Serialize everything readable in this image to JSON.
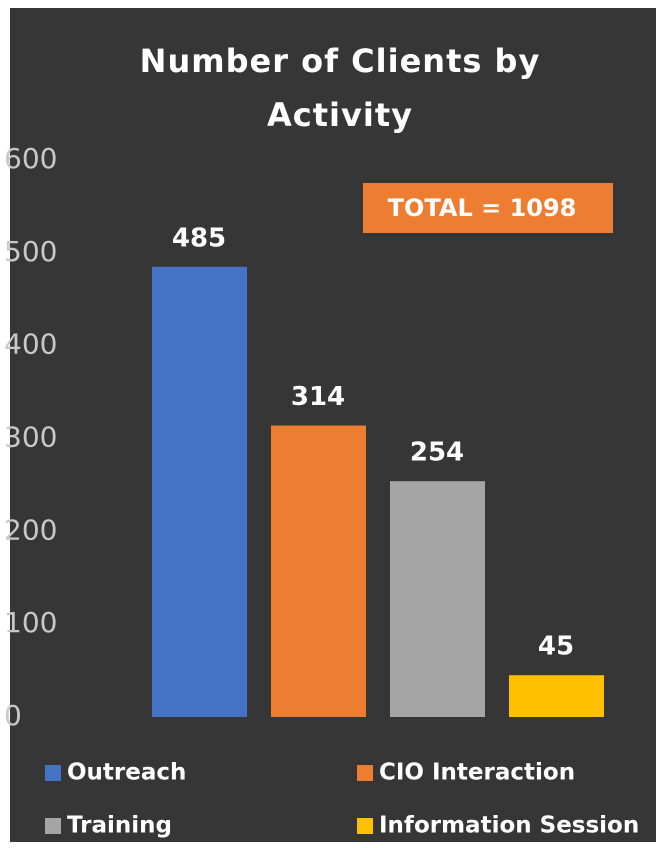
{
  "chart_data": {
    "type": "bar",
    "title": "Number of Clients by Activity",
    "categories": [
      "Outreach",
      "CIO Interaction",
      "Training",
      "Information Session"
    ],
    "values": [
      485,
      314,
      254,
      45
    ],
    "colors": [
      "#4472c4",
      "#ed7d31",
      "#a5a5a5",
      "#ffc000"
    ],
    "ylim": [
      0,
      600
    ],
    "yticks": [
      0,
      100,
      200,
      300,
      400,
      500,
      600
    ],
    "grid": false,
    "annotation": "TOTAL = 1098",
    "annotation_color": "#ed7d31"
  }
}
